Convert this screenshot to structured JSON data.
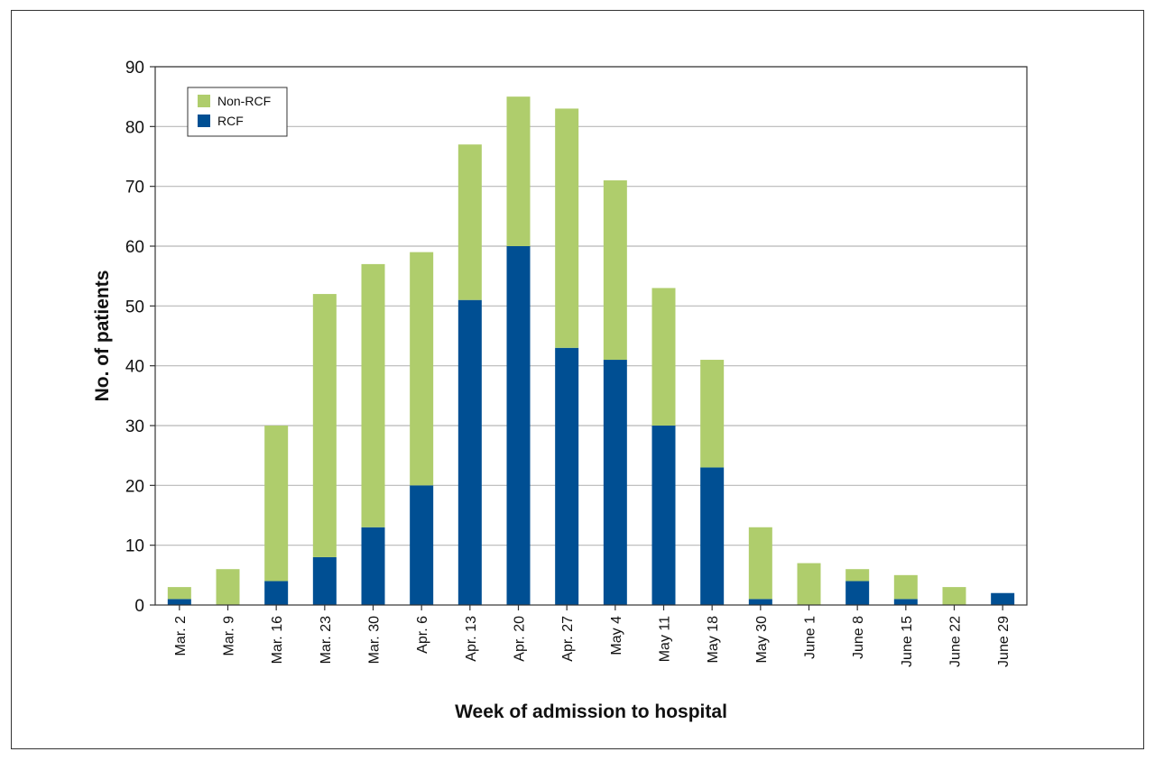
{
  "chart_data": {
    "type": "bar",
    "stacked": true,
    "title": "",
    "xlabel": "Week of admission to hospital",
    "ylabel": "No. of patients",
    "ylim": [
      0,
      90
    ],
    "yticks": [
      0,
      10,
      20,
      30,
      40,
      50,
      60,
      70,
      80,
      90
    ],
    "grid": true,
    "legend_position": "top-left",
    "categories": [
      "Mar. 2",
      "Mar. 9",
      "Mar. 16",
      "Mar. 23",
      "Mar. 30",
      "Apr. 6",
      "Apr. 13",
      "Apr. 20",
      "Apr. 27",
      "May 4",
      "May 11",
      "May 18",
      "May 30",
      "June 1",
      "June 8",
      "June 15",
      "June 22",
      "June 29"
    ],
    "series": [
      {
        "name": "RCF",
        "color": "#004f93",
        "values": [
          1,
          0,
          4,
          8,
          13,
          20,
          51,
          60,
          43,
          41,
          30,
          23,
          1,
          0,
          4,
          1,
          0,
          2
        ]
      },
      {
        "name": "Non-RCF",
        "color": "#afcd6c",
        "values": [
          2,
          6,
          26,
          44,
          44,
          39,
          26,
          25,
          40,
          30,
          23,
          18,
          12,
          7,
          2,
          4,
          3,
          0
        ]
      }
    ],
    "legend_order": [
      "Non-RCF",
      "RCF"
    ]
  }
}
